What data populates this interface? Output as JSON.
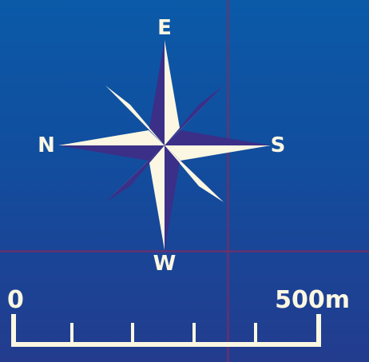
{
  "compass": {
    "label_top": "E",
    "label_bottom": "W",
    "label_left": "N",
    "label_right": "S",
    "colors": {
      "light": "#fbf7e2",
      "dark": "#3b2f88"
    }
  },
  "scale_bar": {
    "start_label": "0",
    "end_label": "500m",
    "color": "#fbf7e2"
  },
  "background": {
    "top": "#0a5aa8",
    "bottom": "#233c8e",
    "grid_line": "#8c285a"
  }
}
